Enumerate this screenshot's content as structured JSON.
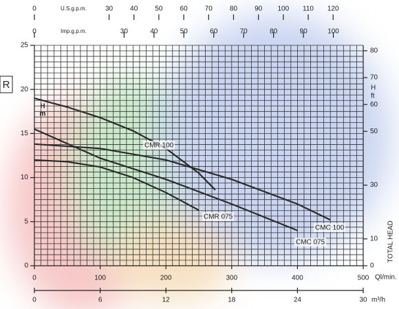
{
  "chart_data": {
    "type": "line",
    "logo_text": "R",
    "y_label": "H",
    "y_unit": "m",
    "y2_label": "H",
    "y2_unit": "ft",
    "y2_title": "TOTAL HEAD",
    "ylim": [
      0,
      25
    ],
    "yticks": [
      0,
      5,
      10,
      15,
      20,
      25
    ],
    "y2lim": [
      0,
      82.02
    ],
    "y2ticks": [
      0,
      10,
      30,
      50,
      60,
      70,
      80
    ],
    "xlabel": "Ql/min.",
    "xlim": [
      0,
      500
    ],
    "xticks": [
      0,
      100,
      200,
      300,
      400,
      500
    ],
    "x_axes": [
      {
        "label": "m³/h",
        "lim": [
          0,
          30
        ],
        "ticks": [
          0,
          6,
          12,
          18,
          24,
          30
        ],
        "position": "bottom"
      },
      {
        "label": "U.S.g.p.m.",
        "lim": [
          0,
          132.1
        ],
        "ticks": [
          0,
          30,
          40,
          50,
          60,
          70,
          80,
          90,
          100,
          110,
          120
        ],
        "position": "top"
      },
      {
        "label": "Imp.g.p.m.",
        "lim": [
          0,
          110
        ],
        "ticks": [
          0,
          30,
          40,
          50,
          60,
          70,
          80,
          90,
          100
        ],
        "position": "top"
      }
    ],
    "grid": true,
    "series": [
      {
        "name": "CMR 100",
        "color": "#2b2b2b",
        "x": [
          0,
          50,
          100,
          150,
          200,
          250,
          275
        ],
        "values": [
          19,
          18,
          16.8,
          15.3,
          13.3,
          10.5,
          8.6
        ]
      },
      {
        "name": "CMR 075",
        "color": "#2b2b2b",
        "x": [
          0,
          50,
          100,
          150,
          200,
          250
        ],
        "values": [
          12,
          11.8,
          11.2,
          10,
          8.3,
          6.3
        ]
      },
      {
        "name": "CMC 100",
        "color": "#2b2b2b",
        "x": [
          0,
          100,
          200,
          300,
          400,
          450
        ],
        "values": [
          13.8,
          13.3,
          12,
          9.8,
          7,
          5.2
        ]
      },
      {
        "name": "CMC 075",
        "color": "#2b2b2b",
        "x": [
          0,
          100,
          200,
          300,
          400
        ],
        "values": [
          15.5,
          12.2,
          9.8,
          7,
          4
        ]
      }
    ]
  }
}
